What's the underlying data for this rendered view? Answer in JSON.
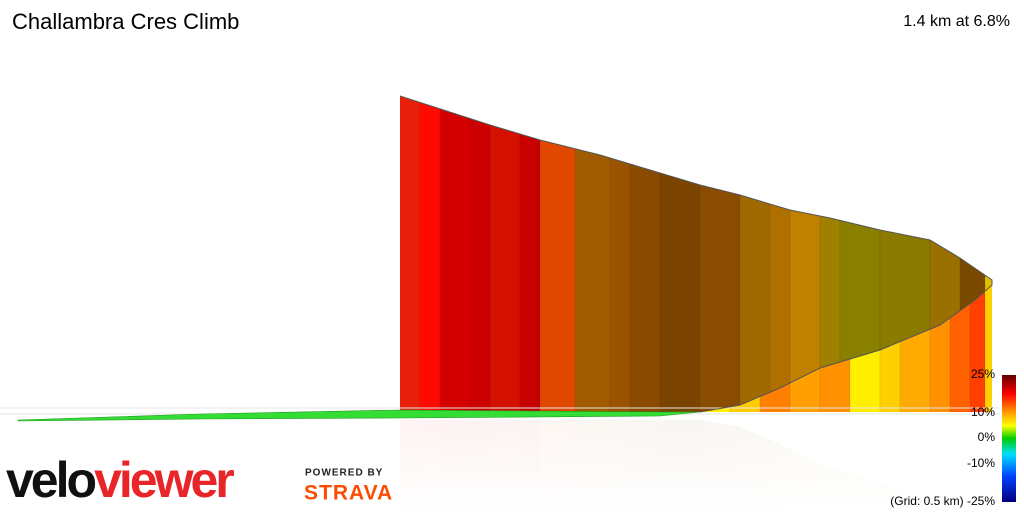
{
  "header": {
    "title": "Challambra Cres Climb",
    "stats": "1.4 km at 6.8%"
  },
  "legend": {
    "labels": [
      "25%",
      "10%",
      "0%",
      "-10%",
      "(Grid: 0.5 km) -25%"
    ]
  },
  "brand": {
    "logo_part1": "velo",
    "logo_part2": "viewer",
    "powered_by": "POWERED BY",
    "partner": "STRAVA"
  }
}
